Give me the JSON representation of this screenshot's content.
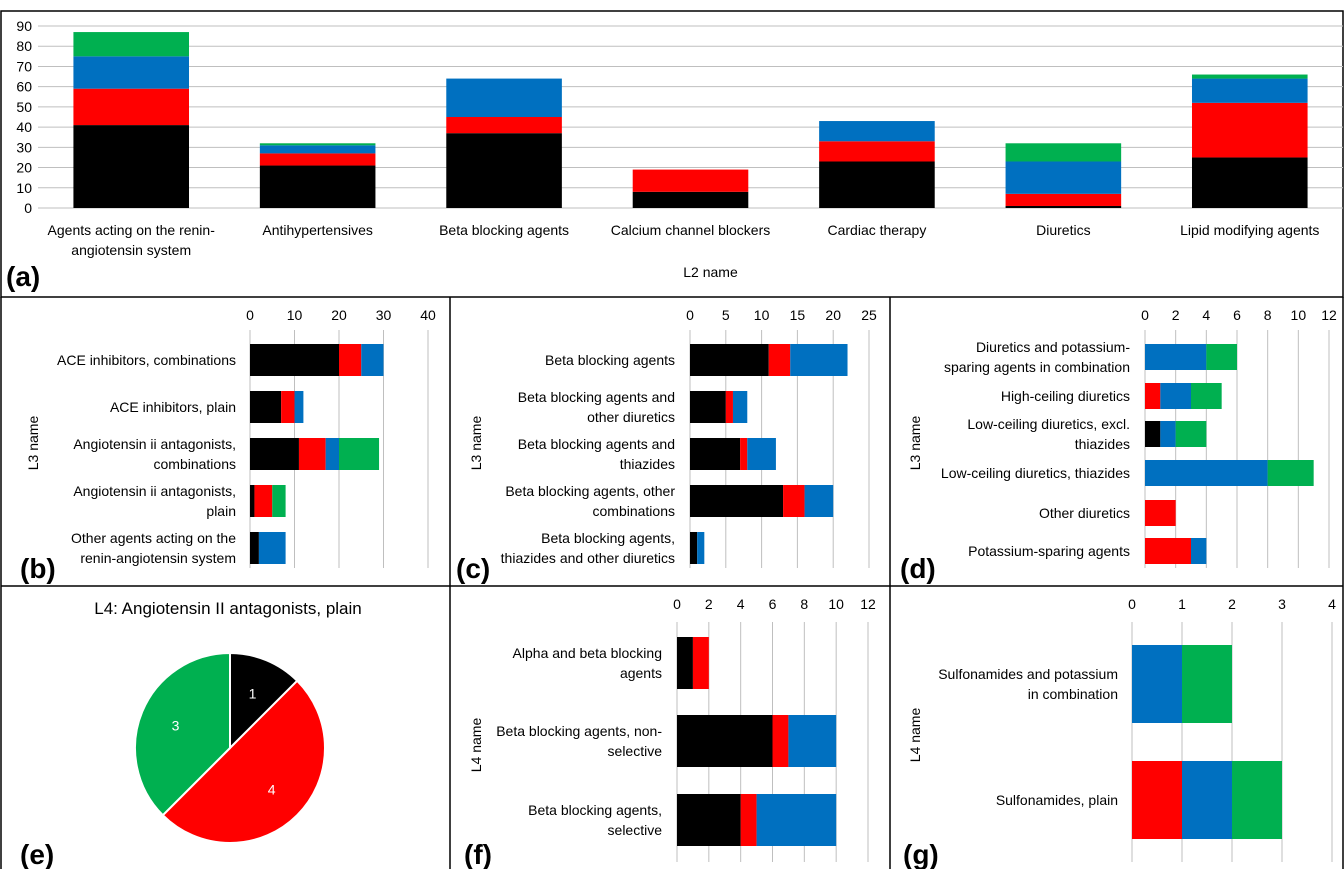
{
  "colors": {
    "black": "#000000",
    "red": "#ff0000",
    "blue": "#0070c0",
    "green": "#00b050"
  },
  "chart_data": [
    {
      "id": "a",
      "panel_label": "(a)",
      "type": "bar",
      "orientation": "vertical",
      "stacked": true,
      "title": "",
      "xlabel": "L2 name",
      "ylabel": "",
      "ylim": [
        0,
        90
      ],
      "yticks": [
        0,
        10,
        20,
        30,
        40,
        50,
        60,
        70,
        80,
        90
      ],
      "categories": [
        [
          "Agents acting on the renin-",
          "angiotensin system"
        ],
        [
          "Antihypertensives"
        ],
        [
          "Beta blocking agents"
        ],
        [
          "Calcium channel blockers"
        ],
        [
          "Cardiac therapy"
        ],
        [
          "Diuretics"
        ],
        [
          "Lipid modifying agents"
        ]
      ],
      "series": [
        {
          "color": "#000000",
          "values": [
            41,
            21,
            37,
            8,
            23,
            1,
            25
          ]
        },
        {
          "color": "#ff0000",
          "values": [
            18,
            6,
            8,
            11,
            10,
            6,
            27
          ]
        },
        {
          "color": "#0070c0",
          "values": [
            16,
            4,
            19,
            0,
            10,
            16,
            12
          ]
        },
        {
          "color": "#00b050",
          "values": [
            12,
            1,
            0,
            0,
            0,
            9,
            2
          ]
        }
      ],
      "grid": true
    },
    {
      "id": "b",
      "panel_label": "(b)",
      "type": "bar",
      "orientation": "horizontal",
      "stacked": true,
      "title": "",
      "xlabel": "",
      "ylabel": "L3 name",
      "xlim": [
        0,
        40
      ],
      "xticks": [
        0,
        10,
        20,
        30,
        40
      ],
      "categories": [
        [
          "ACE inhibitors, combinations"
        ],
        [
          "ACE inhibitors, plain"
        ],
        [
          "Angiotensin ii antagonists,",
          "combinations"
        ],
        [
          "Angiotensin ii antagonists,",
          "plain"
        ],
        [
          "Other agents acting on the",
          "renin-angiotensin system"
        ]
      ],
      "series": [
        {
          "color": "#000000",
          "values": [
            20,
            7,
            11,
            1,
            2
          ]
        },
        {
          "color": "#ff0000",
          "values": [
            5,
            3,
            6,
            4,
            0
          ]
        },
        {
          "color": "#0070c0",
          "values": [
            5,
            2,
            3,
            0,
            6
          ]
        },
        {
          "color": "#00b050",
          "values": [
            0,
            0,
            9,
            3,
            0
          ]
        }
      ],
      "grid": true
    },
    {
      "id": "c",
      "panel_label": "(c)",
      "type": "bar",
      "orientation": "horizontal",
      "stacked": true,
      "title": "",
      "xlabel": "",
      "ylabel": "L3 name",
      "xlim": [
        0,
        25
      ],
      "xticks": [
        0,
        5,
        10,
        15,
        20,
        25
      ],
      "categories": [
        [
          "Beta blocking agents"
        ],
        [
          "Beta blocking agents and",
          "other diuretics"
        ],
        [
          "Beta blocking agents and",
          "thiazides"
        ],
        [
          "Beta blocking agents, other",
          "combinations"
        ],
        [
          "Beta blocking agents,",
          "thiazides and other diuretics"
        ]
      ],
      "series": [
        {
          "color": "#000000",
          "values": [
            11,
            5,
            7,
            13,
            1
          ]
        },
        {
          "color": "#ff0000",
          "values": [
            3,
            1,
            1,
            3,
            0
          ]
        },
        {
          "color": "#0070c0",
          "values": [
            8,
            2,
            4,
            4,
            1
          ]
        },
        {
          "color": "#00b050",
          "values": [
            0,
            0,
            0,
            0,
            0
          ]
        }
      ],
      "grid": true
    },
    {
      "id": "d",
      "panel_label": "(d)",
      "type": "bar",
      "orientation": "horizontal",
      "stacked": true,
      "title": "",
      "xlabel": "",
      "ylabel": "L3 name",
      "xlim": [
        0,
        12
      ],
      "xticks": [
        0,
        2,
        4,
        6,
        8,
        10,
        12
      ],
      "categories": [
        [
          "Diuretics and potassium-",
          "sparing agents in combination"
        ],
        [
          "High-ceiling diuretics"
        ],
        [
          "Low-ceiling diuretics, excl.",
          "thiazides"
        ],
        [
          "Low-ceiling diuretics, thiazides"
        ],
        [
          "Other diuretics"
        ],
        [
          "Potassium-sparing agents"
        ]
      ],
      "series": [
        {
          "color": "#000000",
          "values": [
            0,
            0,
            1,
            0,
            0,
            0
          ]
        },
        {
          "color": "#ff0000",
          "values": [
            0,
            1,
            0,
            0,
            2,
            3
          ]
        },
        {
          "color": "#0070c0",
          "values": [
            4,
            2,
            1,
            8,
            0,
            1
          ]
        },
        {
          "color": "#00b050",
          "values": [
            2,
            2,
            2,
            3,
            0,
            0
          ]
        }
      ],
      "grid": true
    },
    {
      "id": "e",
      "panel_label": "(e)",
      "type": "pie",
      "title": "L4: Angiotensin II antagonists, plain",
      "slices": [
        {
          "label": "1",
          "value": 1,
          "color": "#000000"
        },
        {
          "label": "4",
          "value": 4,
          "color": "#ff0000"
        },
        {
          "label": "3",
          "value": 3,
          "color": "#00b050"
        }
      ]
    },
    {
      "id": "f",
      "panel_label": "(f)",
      "type": "bar",
      "orientation": "horizontal",
      "stacked": true,
      "title": "",
      "xlabel": "",
      "ylabel": "L4 name",
      "xlim": [
        0,
        12
      ],
      "xticks": [
        0,
        2,
        4,
        6,
        8,
        10,
        12
      ],
      "categories": [
        [
          "Alpha and beta blocking",
          "agents"
        ],
        [
          "Beta blocking agents, non-",
          "selective"
        ],
        [
          "Beta blocking agents,",
          "selective"
        ]
      ],
      "series": [
        {
          "color": "#000000",
          "values": [
            1,
            6,
            4
          ]
        },
        {
          "color": "#ff0000",
          "values": [
            1,
            1,
            1
          ]
        },
        {
          "color": "#0070c0",
          "values": [
            0,
            3,
            5
          ]
        },
        {
          "color": "#00b050",
          "values": [
            0,
            0,
            0
          ]
        }
      ],
      "grid": true
    },
    {
      "id": "g",
      "panel_label": "(g)",
      "type": "bar",
      "orientation": "horizontal",
      "stacked": true,
      "title": "",
      "xlabel": "",
      "ylabel": "L4 name",
      "xlim": [
        0,
        4
      ],
      "xticks": [
        0,
        1,
        2,
        3,
        4
      ],
      "categories": [
        [
          "Sulfonamides and potassium",
          "in combination"
        ],
        [
          "Sulfonamides, plain"
        ]
      ],
      "series": [
        {
          "color": "#000000",
          "values": [
            0,
            0
          ]
        },
        {
          "color": "#ff0000",
          "values": [
            0,
            1
          ]
        },
        {
          "color": "#0070c0",
          "values": [
            1,
            1
          ]
        },
        {
          "color": "#00b050",
          "values": [
            1,
            1
          ]
        }
      ],
      "grid": true
    }
  ]
}
